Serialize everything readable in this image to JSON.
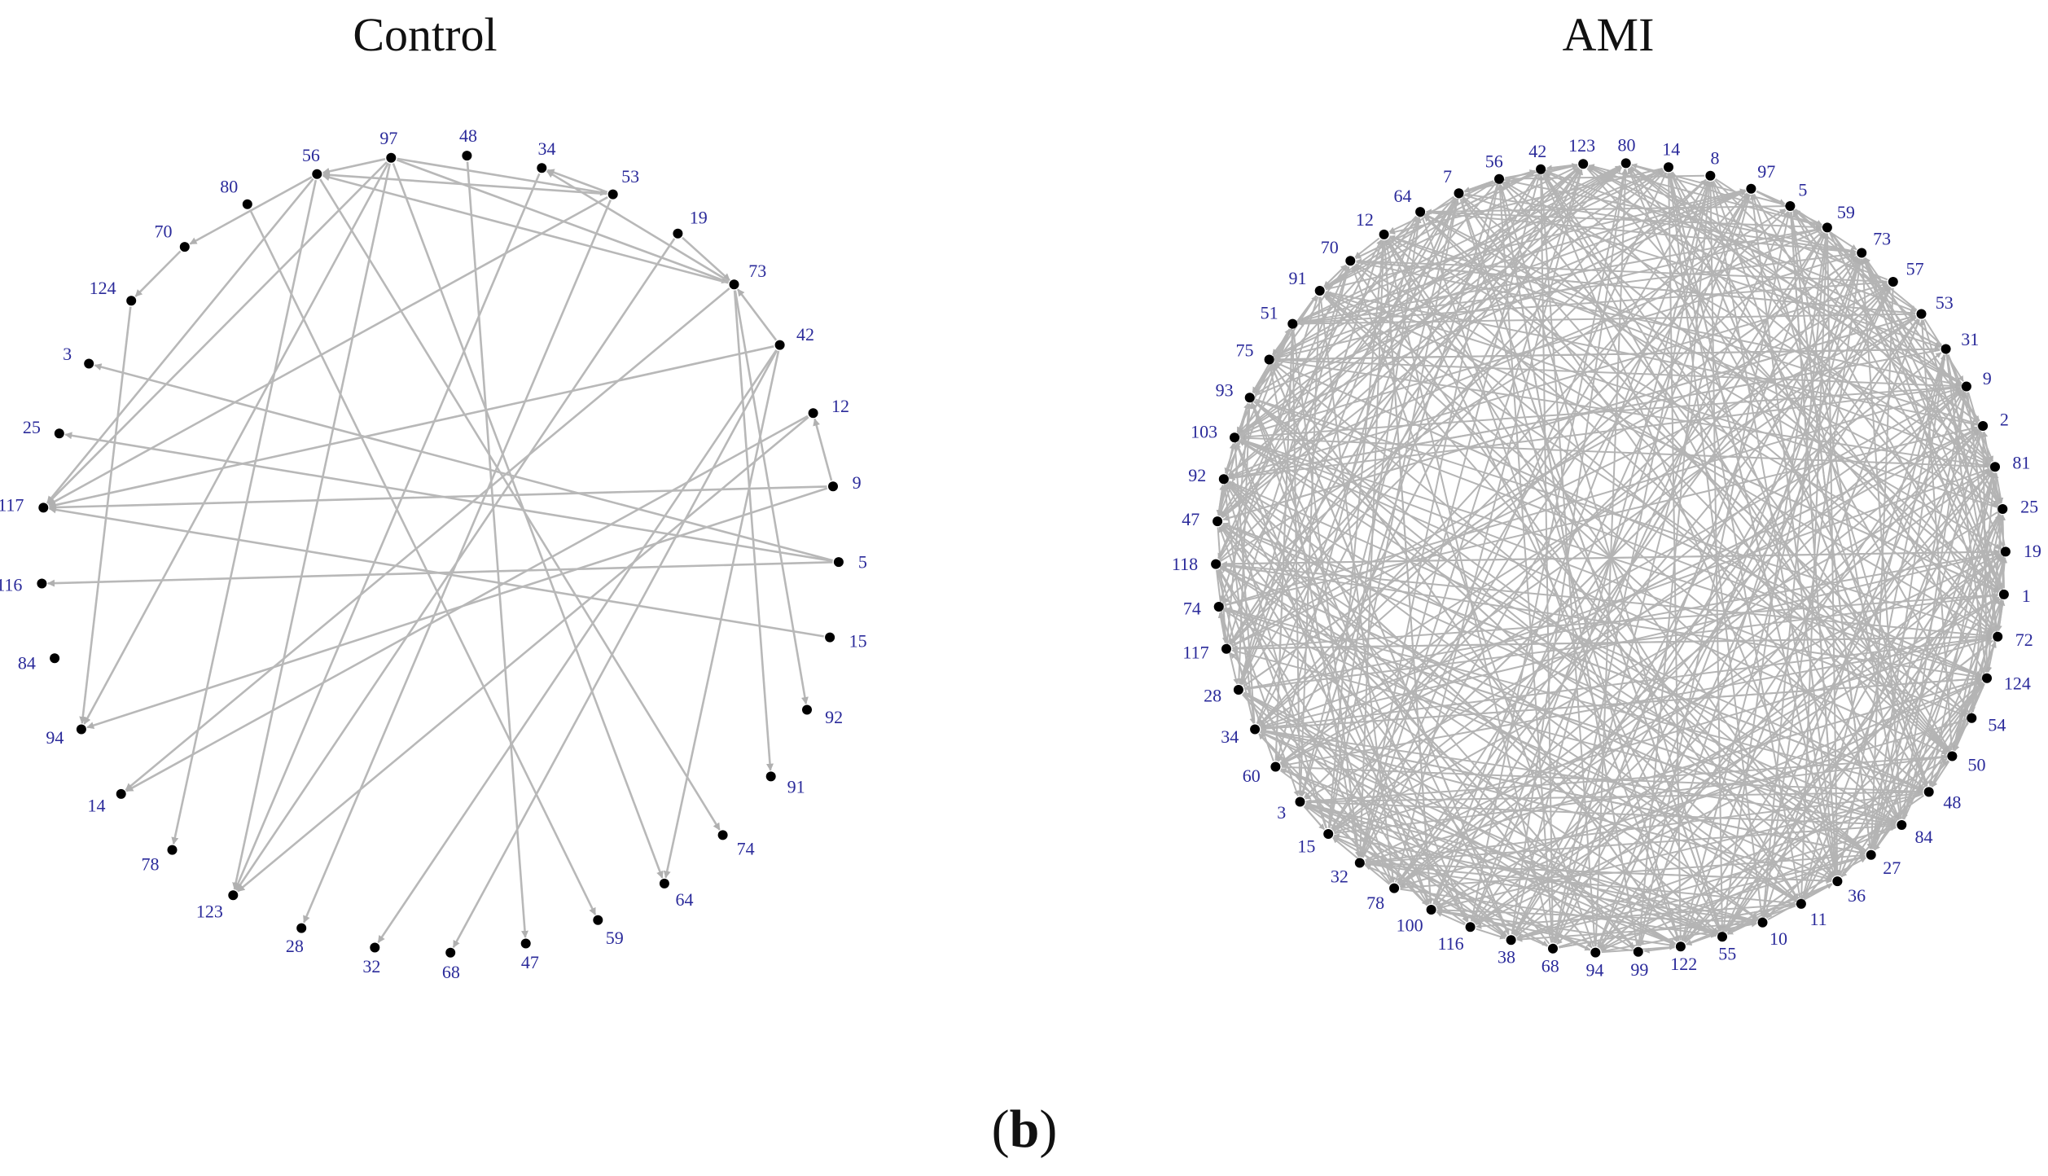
{
  "panels": {
    "control": {
      "title": "Control",
      "nodes": [
        "97",
        "48",
        "34",
        "53",
        "19",
        "73",
        "42",
        "12",
        "9",
        "5",
        "15",
        "92",
        "91",
        "74",
        "64",
        "59",
        "47",
        "68",
        "32",
        "28",
        "123",
        "78",
        "14",
        "94",
        "84",
        "116",
        "117",
        "25",
        "3",
        "124",
        "70",
        "80",
        "56"
      ],
      "edges": [
        [
          "97",
          "56"
        ],
        [
          "97",
          "53"
        ],
        [
          "97",
          "73"
        ],
        [
          "97",
          "117"
        ],
        [
          "97",
          "94"
        ],
        [
          "97",
          "123"
        ],
        [
          "97",
          "64"
        ],
        [
          "53",
          "34"
        ],
        [
          "53",
          "56"
        ],
        [
          "53",
          "117"
        ],
        [
          "53",
          "28"
        ],
        [
          "19",
          "73"
        ],
        [
          "19",
          "123"
        ],
        [
          "73",
          "56"
        ],
        [
          "73",
          "34"
        ],
        [
          "73",
          "92"
        ],
        [
          "73",
          "91"
        ],
        [
          "73",
          "14"
        ],
        [
          "42",
          "73"
        ],
        [
          "42",
          "117"
        ],
        [
          "42",
          "32"
        ],
        [
          "42",
          "68"
        ],
        [
          "42",
          "64"
        ],
        [
          "56",
          "70"
        ],
        [
          "56",
          "78"
        ],
        [
          "56",
          "74"
        ],
        [
          "56",
          "117"
        ],
        [
          "70",
          "124"
        ],
        [
          "80",
          "59"
        ],
        [
          "124",
          "94"
        ],
        [
          "48",
          "47"
        ],
        [
          "34",
          "123"
        ],
        [
          "9",
          "12"
        ],
        [
          "9",
          "117"
        ],
        [
          "9",
          "94"
        ],
        [
          "5",
          "3"
        ],
        [
          "5",
          "25"
        ],
        [
          "5",
          "116"
        ],
        [
          "12",
          "123"
        ],
        [
          "12",
          "14"
        ],
        [
          "15",
          "117"
        ]
      ]
    },
    "ami": {
      "title": "AMI",
      "nodes": [
        "123",
        "80",
        "14",
        "8",
        "97",
        "5",
        "59",
        "73",
        "57",
        "53",
        "31",
        "9",
        "2",
        "81",
        "25",
        "19",
        "1",
        "72",
        "124",
        "54",
        "50",
        "48",
        "84",
        "27",
        "36",
        "11",
        "10",
        "55",
        "122",
        "99",
        "94",
        "68",
        "38",
        "116",
        "100",
        "78",
        "32",
        "15",
        "3",
        "60",
        "34",
        "28",
        "117",
        "74",
        "118",
        "47",
        "92",
        "103",
        "93",
        "75",
        "51",
        "91",
        "70",
        "12",
        "64",
        "7",
        "56",
        "42"
      ]
    }
  },
  "subfigure_label": {
    "open": "(",
    "letter": "b",
    "close": ")"
  }
}
